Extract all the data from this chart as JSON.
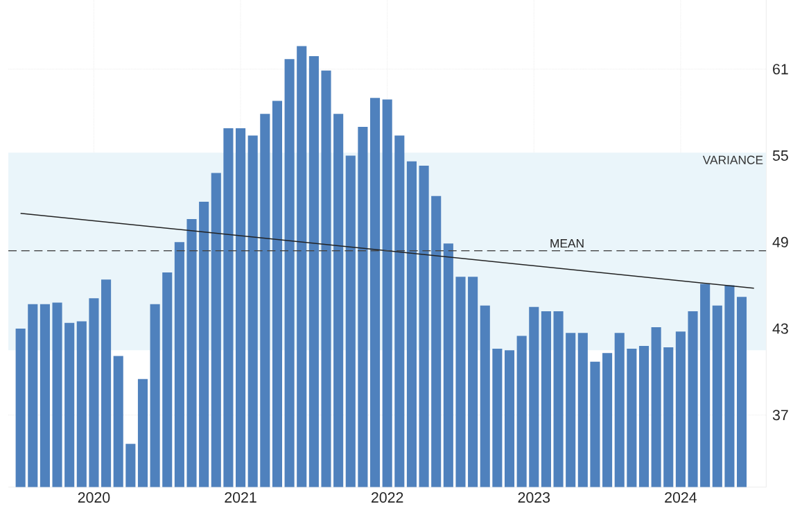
{
  "chart_data": {
    "type": "bar",
    "color": "#4f81bd",
    "x": [
      "2019-07",
      "2019-08",
      "2019-09",
      "2019-10",
      "2019-11",
      "2019-12",
      "2020-01",
      "2020-02",
      "2020-03",
      "2020-04",
      "2020-05",
      "2020-06",
      "2020-07",
      "2020-08",
      "2020-09",
      "2020-10",
      "2020-11",
      "2020-12",
      "2021-01",
      "2021-02",
      "2021-03",
      "2021-04",
      "2021-05",
      "2021-06",
      "2021-07",
      "2021-08",
      "2021-09",
      "2021-10",
      "2021-11",
      "2021-12",
      "2022-01",
      "2022-02",
      "2022-03",
      "2022-04",
      "2022-05",
      "2022-06",
      "2022-07",
      "2022-08",
      "2022-09",
      "2022-10",
      "2022-11",
      "2022-12",
      "2023-01",
      "2023-02",
      "2023-03",
      "2023-04",
      "2023-05",
      "2023-06",
      "2023-07",
      "2023-08",
      "2023-09",
      "2023-10",
      "2023-11",
      "2023-12",
      "2024-01",
      "2024-02",
      "2024-03",
      "2024-04",
      "2024-05",
      "2024-06"
    ],
    "series": [
      {
        "values": [
          43.0,
          44.7,
          44.7,
          44.8,
          43.4,
          43.5,
          45.1,
          46.4,
          41.1,
          35.0,
          39.5,
          44.7,
          46.9,
          49.0,
          50.6,
          51.8,
          53.8,
          56.9,
          56.9,
          56.4,
          57.9,
          58.8,
          61.7,
          62.6,
          61.9,
          60.9,
          57.9,
          55.0,
          57.0,
          59.0,
          58.9,
          56.4,
          54.6,
          54.3,
          52.2,
          48.9,
          46.6,
          46.6,
          44.6,
          41.6,
          41.5,
          42.5,
          44.5,
          44.2,
          44.2,
          42.7,
          42.7,
          40.7,
          41.3,
          42.7,
          41.6,
          41.8,
          43.1,
          41.7,
          42.8,
          44.2,
          46.1,
          44.6,
          46.0,
          45.2
        ]
      },
      {
        "type": "line",
        "color": "#222222",
        "x": [
          "2019-07",
          "2024-07"
        ],
        "values": [
          51.0,
          45.8
        ]
      }
    ],
    "xlim": [
      "2019-06",
      "2024-08"
    ],
    "xticks": [
      {
        "value": "2020-01",
        "label": "2020"
      },
      {
        "value": "2021-01",
        "label": "2021"
      },
      {
        "value": "2022-01",
        "label": "2022"
      },
      {
        "value": "2023-01",
        "label": "2023"
      },
      {
        "value": "2024-01",
        "label": "2024"
      }
    ],
    "ylim": [
      32,
      65.8
    ],
    "yticks": [
      37,
      43,
      49,
      55,
      61
    ],
    "grid": true,
    "ref_lines": [
      {
        "axis": "y",
        "value": 48.4,
        "label": "MEAN",
        "color": "#444444",
        "line_style": "dashed"
      }
    ],
    "bands": [
      {
        "axis": "y",
        "from": 41.5,
        "to": 55.2,
        "label": "VARIANCE",
        "color": "#eaf5fa"
      }
    ]
  }
}
